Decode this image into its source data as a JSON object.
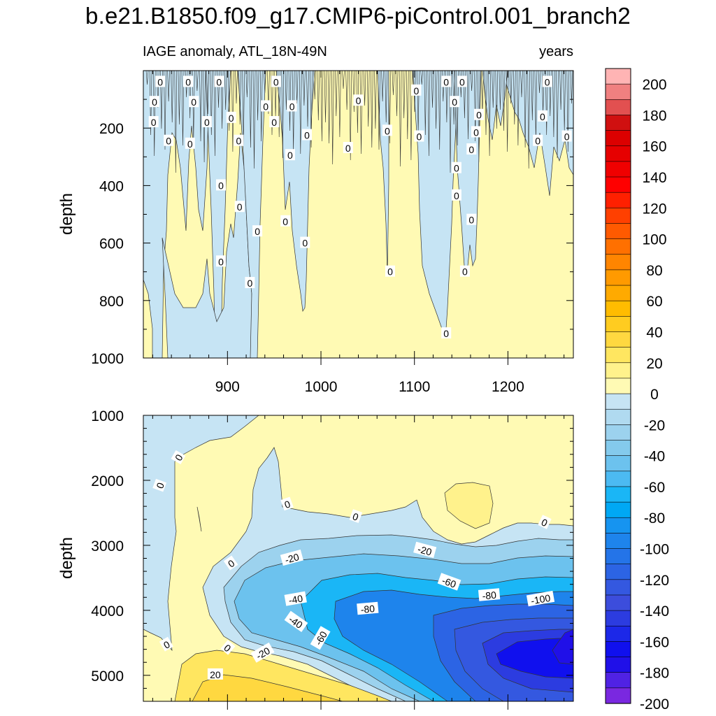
{
  "figure": {
    "title": "b.e21.B1850.f09_g17.CMIP6-piControl.001_branch2",
    "left_string": "IAGE anomaly, ATL_18N-49N",
    "right_string": "years"
  },
  "chart_data": [
    {
      "type": "heatmap",
      "panel": "upper",
      "ylabel": "depth",
      "xlabel": "",
      "xlim": [
        810,
        1270
      ],
      "ylim": [
        1000,
        0
      ],
      "x_ticks": [
        900,
        1000,
        1100,
        1200
      ],
      "y_ticks": [
        200,
        400,
        600,
        800,
        1000
      ],
      "contour_levels": [
        0
      ],
      "contour_labels": [
        {
          "text": "0",
          "x": 828,
          "y": 40
        },
        {
          "text": "0",
          "x": 858,
          "y": 40
        },
        {
          "text": "0",
          "x": 891,
          "y": 40
        },
        {
          "text": "0",
          "x": 952,
          "y": 40
        },
        {
          "text": "0",
          "x": 1134,
          "y": 40
        },
        {
          "text": "0",
          "x": 1151,
          "y": 40
        },
        {
          "text": "0",
          "x": 1242,
          "y": 40
        },
        {
          "text": "0",
          "x": 1102,
          "y": 70
        },
        {
          "text": "0",
          "x": 822,
          "y": 110
        },
        {
          "text": "0",
          "x": 864,
          "y": 110
        },
        {
          "text": "0",
          "x": 1040,
          "y": 105
        },
        {
          "text": "0",
          "x": 1143,
          "y": 110
        },
        {
          "text": "0",
          "x": 941,
          "y": 125
        },
        {
          "text": "0",
          "x": 969,
          "y": 125
        },
        {
          "text": "0",
          "x": 904,
          "y": 165
        },
        {
          "text": "0",
          "x": 1169,
          "y": 155
        },
        {
          "text": "0",
          "x": 1237,
          "y": 160
        },
        {
          "text": "0",
          "x": 821,
          "y": 180
        },
        {
          "text": "0",
          "x": 878,
          "y": 180
        },
        {
          "text": "0",
          "x": 950,
          "y": 180
        },
        {
          "text": "0",
          "x": 1071,
          "y": 210
        },
        {
          "text": "0",
          "x": 1166,
          "y": 215
        },
        {
          "text": "0",
          "x": 985,
          "y": 225
        },
        {
          "text": "0",
          "x": 1105,
          "y": 230
        },
        {
          "text": "0",
          "x": 1263,
          "y": 230
        },
        {
          "text": "0",
          "x": 837,
          "y": 245
        },
        {
          "text": "0",
          "x": 860,
          "y": 255
        },
        {
          "text": "0",
          "x": 912,
          "y": 245
        },
        {
          "text": "0",
          "x": 1029,
          "y": 270
        },
        {
          "text": "0",
          "x": 1161,
          "y": 275
        },
        {
          "text": "0",
          "x": 1232,
          "y": 245
        },
        {
          "text": "0",
          "x": 967,
          "y": 295
        },
        {
          "text": "0",
          "x": 1145,
          "y": 340
        },
        {
          "text": "0",
          "x": 893,
          "y": 400
        },
        {
          "text": "0",
          "x": 1145,
          "y": 435
        },
        {
          "text": "0",
          "x": 913,
          "y": 475
        },
        {
          "text": "0",
          "x": 1161,
          "y": 520
        },
        {
          "text": "0",
          "x": 932,
          "y": 560
        },
        {
          "text": "0",
          "x": 962,
          "y": 525
        },
        {
          "text": "0",
          "x": 983,
          "y": 600
        },
        {
          "text": "0",
          "x": 893,
          "y": 665
        },
        {
          "text": "0",
          "x": 1074,
          "y": 700
        },
        {
          "text": "0",
          "x": 1154,
          "y": 700
        },
        {
          "text": "0",
          "x": 924,
          "y": 740
        },
        {
          "text": "0",
          "x": 1134,
          "y": 915
        }
      ]
    },
    {
      "type": "heatmap",
      "panel": "lower",
      "ylabel": "depth",
      "xlabel": "",
      "xlim": [
        810,
        1270
      ],
      "ylim": [
        5400,
        1000
      ],
      "y_ticks": [
        1000,
        2000,
        3000,
        4000,
        5000
      ],
      "contour_levels": [
        -200,
        -180,
        -160,
        -140,
        -120,
        -100,
        -80,
        -60,
        -40,
        -20,
        0,
        20,
        40
      ],
      "contour_labels": [
        {
          "text": "0",
          "x": 848,
          "y": 1650
        },
        {
          "text": "0",
          "x": 828,
          "y": 2080
        },
        {
          "text": "0",
          "x": 964,
          "y": 2370
        },
        {
          "text": "0",
          "x": 1037,
          "y": 2560
        },
        {
          "text": "0",
          "x": 1239,
          "y": 2650
        },
        {
          "text": "-20",
          "x": 1111,
          "y": 3080
        },
        {
          "text": "0",
          "x": 904,
          "y": 3280
        },
        {
          "text": "-20",
          "x": 969,
          "y": 3200
        },
        {
          "text": "-60",
          "x": 1137,
          "y": 3570
        },
        {
          "text": "-80",
          "x": 1180,
          "y": 3770
        },
        {
          "text": "-100",
          "x": 1235,
          "y": 3830
        },
        {
          "text": "-40",
          "x": 973,
          "y": 3830
        },
        {
          "text": "-80",
          "x": 1050,
          "y": 3980
        },
        {
          "text": "-40",
          "x": 973,
          "y": 4180
        },
        {
          "text": "-60",
          "x": 1000,
          "y": 4430
        },
        {
          "text": "0",
          "x": 835,
          "y": 4530
        },
        {
          "text": "0",
          "x": 900,
          "y": 4580
        },
        {
          "text": "-20",
          "x": 938,
          "y": 4660
        },
        {
          "text": "20",
          "x": 887,
          "y": 4990
        }
      ]
    }
  ],
  "colorbar": {
    "labels": [
      "200",
      "180",
      "160",
      "140",
      "120",
      "100",
      "80",
      "60",
      "40",
      "20",
      "0",
      "-20",
      "-40",
      "-60",
      "-80",
      "-100",
      "-120",
      "-140",
      "-160",
      "-180",
      "-200"
    ],
    "colors_top_to_bottom": [
      "#ffb4b4",
      "#f08080",
      "#e25050",
      "#d01010",
      "#dc0000",
      "#e60000",
      "#f00000",
      "#ff0000",
      "#ff2000",
      "#ff4000",
      "#ff5a00",
      "#ff7000",
      "#ff8500",
      "#ff9a00",
      "#ffaa00",
      "#ffbc00",
      "#ffcc20",
      "#ffd840",
      "#ffe660",
      "#fff28c",
      "#fffab4",
      "#c6e4f4",
      "#b0daf0",
      "#9cd2ee",
      "#84caec",
      "#6cc2ee",
      "#4cbaf2",
      "#1ab6f6",
      "#00a8f4",
      "#1694f0",
      "#1e84ec",
      "#2474e8",
      "#2c64e4",
      "#3458e0",
      "#3c4ddc",
      "#2c3ce0",
      "#1c28e8",
      "#1010ee",
      "#2010e8",
      "#5022e4",
      "#7a28e0"
    ]
  }
}
